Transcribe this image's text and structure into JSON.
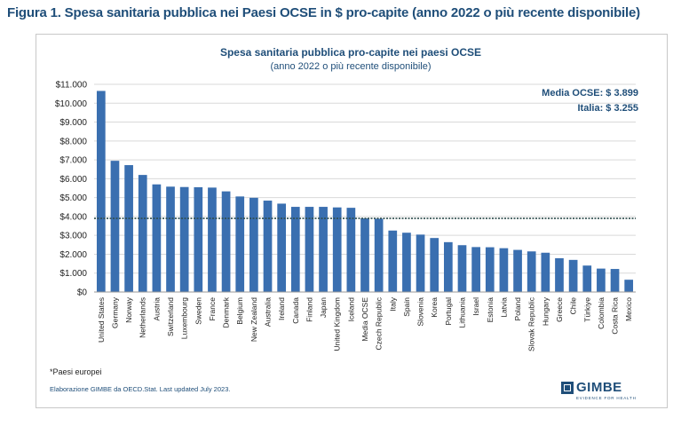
{
  "figure_title": "Figura 1. Spesa sanitaria pubblica nei Paesi OCSE in $ pro-capite (anno 2022 o più recente disponibile)",
  "note": "*Paesi europei",
  "source": "Elaborazione GIMBE da OECD.Stat. Last updated July 2023.",
  "logo": {
    "name": "GIMBE",
    "tagline": "EVIDENCE FOR HEALTH"
  },
  "colors": {
    "bar": "#3a6fb0",
    "title": "#1f4e79",
    "reference_line": "#2f4f4f"
  },
  "chart_data": {
    "type": "bar",
    "title": "Spesa sanitaria pubblica pro-capite nei paesi OCSE",
    "subtitle": "(anno 2022 o più recente disponibile)",
    "xlabel": "",
    "ylabel": "",
    "ylim": [
      0,
      11000
    ],
    "ytick_step": 1000,
    "ytick_labels": [
      "$0",
      "$1.000",
      "$2.000",
      "$3.000",
      "$4.000",
      "$5.000",
      "$6.000",
      "$7.000",
      "$8.000",
      "$9.000",
      "$10.000",
      "$11.000"
    ],
    "grid": true,
    "annotations": [
      "Media OCSE: $ 3.899",
      "Italia: $ 3.255"
    ],
    "reference_line": {
      "value": 3899,
      "style": "dotted"
    },
    "categories": [
      "United States",
      "Germany",
      "Norway",
      "Netherlands",
      "Austria",
      "Switzerland",
      "Luxembourg",
      "Sweden",
      "France",
      "Denmark",
      "Belgium",
      "New Zealand",
      "Australia",
      "Ireland",
      "Canada",
      "Finland",
      "Japan",
      "United Kingdom",
      "Iceland",
      "Media OCSE",
      "Czech Republic",
      "Italy",
      "Spain",
      "Slovenia",
      "Korea",
      "Portugal",
      "Lithuania",
      "Israel",
      "Estonia",
      "Latvia",
      "Poland",
      "Slovak Republic",
      "Hungary",
      "Greece",
      "Chile",
      "Türkiye",
      "Colombia",
      "Costa Rica",
      "Mexico"
    ],
    "values": [
      10650,
      6950,
      6720,
      6200,
      5700,
      5580,
      5560,
      5550,
      5530,
      5330,
      5060,
      4990,
      4840,
      4680,
      4510,
      4510,
      4510,
      4480,
      4460,
      3899,
      3880,
      3255,
      3140,
      3040,
      2860,
      2640,
      2480,
      2380,
      2370,
      2320,
      2230,
      2150,
      2080,
      1790,
      1700,
      1400,
      1240,
      1220,
      650
    ]
  }
}
